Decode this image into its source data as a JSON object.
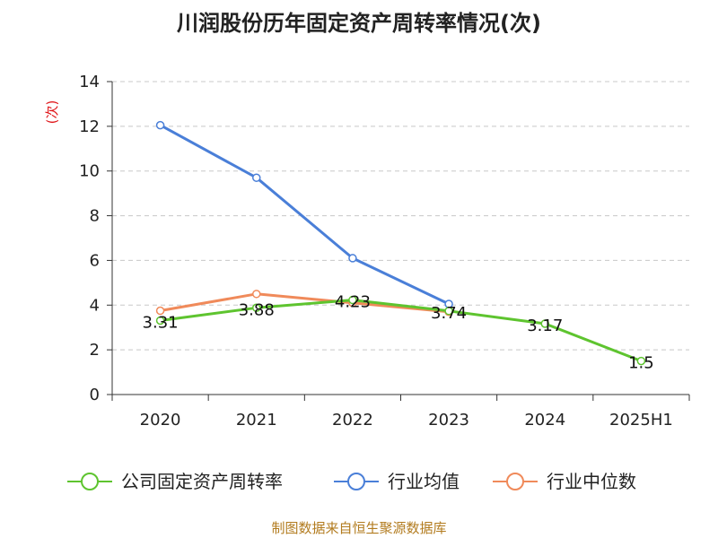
{
  "chart_data": {
    "type": "line",
    "title": "川润股份历年固定资产周转率情况(次)",
    "ylabel": "(次)",
    "categories": [
      "2020",
      "2021",
      "2022",
      "2023",
      "2024",
      "2025H1"
    ],
    "ylim": [
      0,
      14
    ],
    "yticks": [
      0,
      2,
      4,
      6,
      8,
      10,
      12,
      14
    ],
    "grid": true,
    "legend_position": "bottom",
    "series": [
      {
        "name": "公司固定资产周转率",
        "color": "#5ec42f",
        "values": [
          3.31,
          3.88,
          4.23,
          3.74,
          3.17,
          1.5
        ],
        "labels": [
          "3.31",
          "3.88",
          "4.23",
          "3.74",
          "3.17",
          "1.5"
        ]
      },
      {
        "name": "行业均值",
        "color": "#4a7fd8",
        "values": [
          12.05,
          9.7,
          6.1,
          4.05,
          null,
          null
        ]
      },
      {
        "name": "行业中位数",
        "color": "#f08a5a",
        "values": [
          3.75,
          4.5,
          4.1,
          3.7,
          null,
          null
        ]
      }
    ]
  },
  "source": "制图数据来自恒生聚源数据库"
}
